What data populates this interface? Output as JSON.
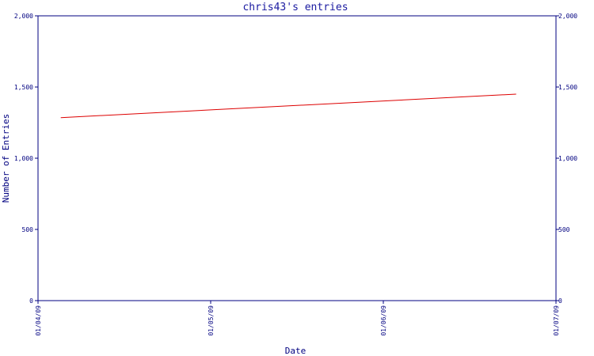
{
  "chart_data": {
    "type": "line",
    "title": "chris43's entries",
    "xlabel": "Date",
    "ylabel": "Number of Entries",
    "x_ticks": [
      "01/04/09",
      "01/05/09",
      "01/06/09",
      "01/07/09"
    ],
    "y_ticks": [
      "0",
      "500",
      "1,000",
      "1,500",
      "2,000"
    ],
    "y_tick_values": [
      0,
      500,
      1000,
      1500,
      2000
    ],
    "ylim": [
      0,
      2000
    ],
    "xlim": [
      "2009-04-01",
      "2009-07-01"
    ],
    "grid": false,
    "legend": "none",
    "series": [
      {
        "color": "#dd0000",
        "x": [
          "2009-04-05",
          "2009-06-24"
        ],
        "y": [
          1285,
          1450
        ]
      }
    ]
  }
}
